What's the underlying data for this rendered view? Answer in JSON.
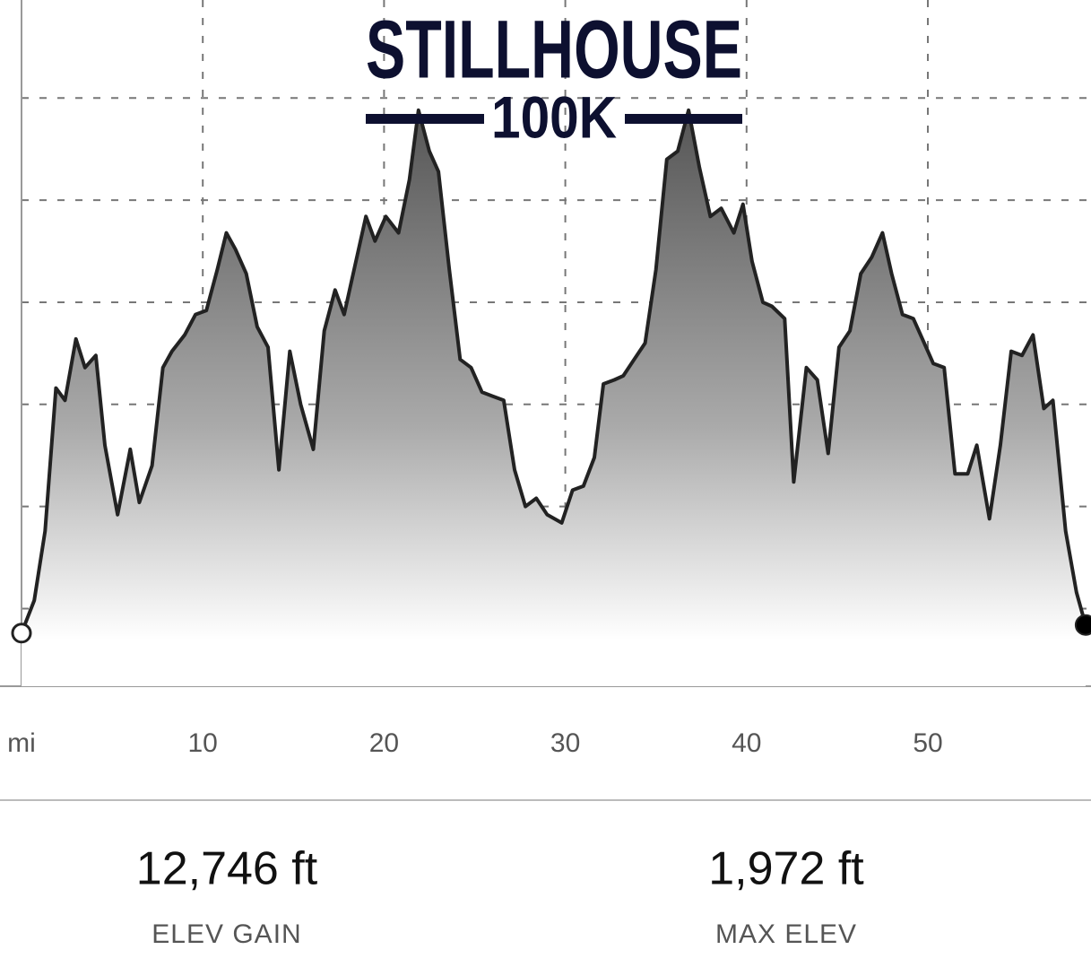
{
  "chart_data": {
    "type": "area",
    "title": "STILLHOUSE",
    "subtitle": "100K",
    "x": [
      0,
      0.7,
      1.3,
      1.9,
      2.4,
      3.0,
      3.5,
      4.1,
      4.6,
      5.3,
      6.0,
      6.5,
      7.2,
      7.8,
      8.3,
      9.0,
      9.6,
      10.2,
      10.8,
      11.3,
      11.8,
      12.4,
      13.0,
      13.6,
      14.2,
      14.8,
      15.4,
      16.1,
      16.7,
      17.3,
      17.8,
      18.4,
      19.0,
      19.5,
      20.1,
      20.8,
      21.4,
      21.9,
      22.5,
      23.0,
      23.6,
      24.2,
      24.8,
      25.4,
      26.0,
      26.6,
      27.2,
      27.8,
      28.4,
      29.0,
      29.8,
      30.4,
      31.0,
      31.6,
      32.1,
      32.7,
      33.2,
      33.8,
      34.4,
      35.0,
      35.6,
      36.2,
      36.8,
      37.4,
      38.0,
      38.6,
      39.3,
      39.8,
      40.3,
      40.9,
      41.4,
      42.1,
      42.6,
      43.3,
      43.9,
      44.5,
      45.1,
      45.7,
      46.3,
      46.9,
      47.5,
      48.0,
      48.6,
      49.2,
      49.8,
      50.3,
      50.9,
      51.5,
      52.2,
      52.7,
      53.4,
      54.0,
      54.6,
      55.2,
      55.8,
      56.4,
      56.9,
      57.6,
      58.2,
      58.7
    ],
    "values": [
      690,
      770,
      940,
      1290,
      1260,
      1410,
      1340,
      1370,
      1150,
      980,
      1140,
      1010,
      1100,
      1340,
      1380,
      1420,
      1470,
      1480,
      1580,
      1670,
      1630,
      1570,
      1440,
      1390,
      1090,
      1380,
      1250,
      1140,
      1430,
      1530,
      1470,
      1590,
      1710,
      1650,
      1710,
      1670,
      1800,
      1970,
      1870,
      1820,
      1580,
      1360,
      1340,
      1280,
      1270,
      1260,
      1090,
      1000,
      1020,
      980,
      960,
      1040,
      1050,
      1120,
      1300,
      1310,
      1320,
      1360,
      1400,
      1580,
      1850,
      1870,
      1970,
      1830,
      1710,
      1730,
      1670,
      1740,
      1600,
      1500,
      1490,
      1460,
      1060,
      1340,
      1310,
      1130,
      1390,
      1430,
      1570,
      1610,
      1670,
      1570,
      1470,
      1460,
      1400,
      1350,
      1340,
      1080,
      1080,
      1150,
      970,
      1150,
      1380,
      1370,
      1420,
      1240,
      1260,
      940,
      790,
      710
    ],
    "color": "#222222",
    "xlim": [
      0,
      59
    ],
    "xticks": [
      {
        "value": 0,
        "label": "mi"
      },
      10,
      20,
      30,
      40,
      50
    ],
    "ylim": [
      560,
      2240
    ],
    "yticks": [
      750,
      1000,
      1250,
      1500,
      1750,
      2000
    ],
    "grid": true
  },
  "stats": [
    {
      "value": "12,746 ft",
      "label": "ELEV GAIN"
    },
    {
      "value": "1,972 ft",
      "label": "MAX ELEV"
    }
  ]
}
